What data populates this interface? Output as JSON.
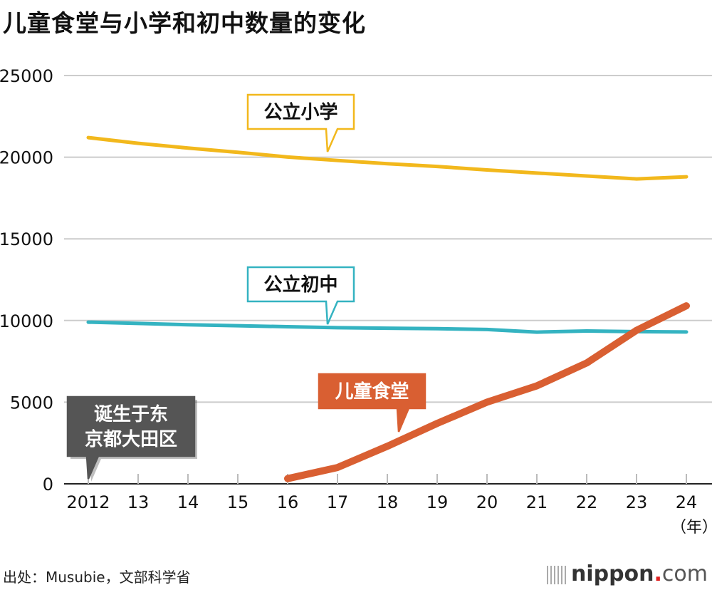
{
  "title": "儿童食堂与小学和初中数量的变化",
  "source": "出处：Musubie，文部科学省",
  "logo": {
    "name": "nippon",
    "dot": ".",
    "suffix": "com"
  },
  "chart_data": {
    "type": "line",
    "title": "儿童食堂与小学和初中数量的变化",
    "x": [
      2012,
      2013,
      2014,
      2015,
      2016,
      2017,
      2018,
      2019,
      2020,
      2021,
      2022,
      2023,
      2024
    ],
    "x_tick_labels": [
      "2012",
      "13",
      "14",
      "15",
      "16",
      "17",
      "18",
      "19",
      "20",
      "21",
      "22",
      "23",
      "24"
    ],
    "x_unit": "（年）",
    "ylim": [
      0,
      25000
    ],
    "y_ticks": [
      0,
      5000,
      10000,
      15000,
      20000,
      25000
    ],
    "grid": true,
    "series": [
      {
        "name": "公立小学",
        "color": "#f2b81c",
        "values": [
          21200,
          20850,
          20560,
          20300,
          20010,
          19800,
          19600,
          19430,
          19220,
          19030,
          18850,
          18670,
          18800
        ]
      },
      {
        "name": "公立初中",
        "color": "#34b3c1",
        "values": [
          9900,
          9820,
          9740,
          9680,
          9620,
          9560,
          9530,
          9500,
          9450,
          9290,
          9360,
          9320,
          9300
        ]
      },
      {
        "name": "儿童食堂",
        "color": "#d95f32",
        "values": [
          null,
          null,
          null,
          null,
          319,
          1000,
          2300,
          3700,
          5000,
          6000,
          7400,
          9400,
          10900
        ]
      }
    ],
    "annotations": [
      {
        "text_lines": [
          "诞生于东",
          "京都大田区"
        ],
        "x": 2012,
        "color": "#555555"
      }
    ]
  }
}
